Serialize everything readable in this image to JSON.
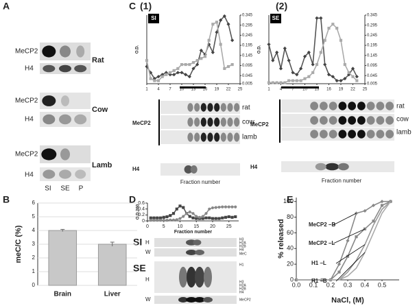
{
  "panel_labels": [
    "A",
    "B",
    "C",
    "D",
    "E"
  ],
  "subpanel_labels": [
    "(1)",
    "(2)"
  ],
  "blot_a": {
    "rows": [
      "MeCP2",
      "H4",
      "MeCP2",
      "H4",
      "MeCP2",
      "H4"
    ],
    "species": [
      "Rat",
      "Cow",
      "Lamb"
    ],
    "lanes": [
      "SI",
      "SE",
      "P"
    ]
  },
  "blot_c": [
    {
      "proteins": [
        "MeCP2",
        "H4"
      ],
      "species": [
        "rat",
        "cow",
        "lamb"
      ],
      "xlabel": "Fraction number"
    },
    {
      "proteins": [
        "MeCP2",
        "H4"
      ],
      "species": [
        "rat",
        "cow",
        "lamb"
      ],
      "xlabel": "Fraction number"
    }
  ],
  "blot_d": {
    "fractions": [
      "SI",
      "SE"
    ],
    "rows": [
      "H",
      "W",
      "H",
      "W"
    ],
    "markers_si": [
      "H3",
      "H2A",
      "H2B",
      "H4",
      "MeC"
    ],
    "markers_se": [
      "H1",
      "H3",
      "H2A",
      "H2B",
      "H4",
      "MeCP2"
    ]
  },
  "chart_data": [
    {
      "type": "bar",
      "ylabel": "meC/C (%)",
      "categories": [
        "Brain",
        "Liver"
      ],
      "values": [
        4.0,
        3.0
      ],
      "errors": [
        0.08,
        0.15
      ],
      "color": "#c8c8c8",
      "ylim": [
        0,
        6
      ],
      "yticks": [
        0,
        1,
        2,
        3,
        4,
        5,
        6
      ],
      "grid": true
    },
    {
      "type": "line",
      "title": "SI",
      "ylabel": "O.D.",
      "x": [
        1,
        2,
        3,
        4,
        5,
        6,
        7,
        8,
        9,
        10,
        11,
        12,
        13,
        14,
        15,
        16,
        17,
        18,
        19,
        20,
        21,
        22,
        23
      ],
      "xlim": [
        1,
        25
      ],
      "xticks": [
        1,
        4,
        7,
        10,
        13,
        16,
        19,
        22,
        25
      ],
      "y2lim": [
        0.005,
        0.345
      ],
      "y2ticks": [
        0.005,
        0.045,
        0.095,
        0.145,
        0.195,
        0.245,
        0.295,
        0.345
      ],
      "series": [
        {
          "color": "#555555",
          "axis": "y2",
          "marker": "diamond",
          "values": [
            0.09,
            0.06,
            0.03,
            0.04,
            0.05,
            0.06,
            0.05,
            0.05,
            0.06,
            0.06,
            0.05,
            0.04,
            0.08,
            0.1,
            0.17,
            0.15,
            0.2,
            0.16,
            0.26,
            0.32,
            0.34,
            0.3,
            0.22
          ]
        },
        {
          "color": "#aaaaaa",
          "axis": "y2",
          "marker": "square",
          "values": [
            0.12,
            0.03,
            0.02,
            0.02,
            0.04,
            0.05,
            0.06,
            0.07,
            0.08,
            0.1,
            0.1,
            0.1,
            0.11,
            0.12,
            0.13,
            0.14,
            0.22,
            0.3,
            0.31,
            0.2,
            0.08,
            0.09,
            0.1
          ]
        }
      ]
    },
    {
      "type": "line",
      "title": "SE",
      "ylabel": "O.D.",
      "x": [
        1,
        2,
        3,
        4,
        5,
        6,
        7,
        8,
        9,
        10,
        11,
        12,
        13,
        14,
        15,
        16,
        17,
        18,
        19,
        20,
        21,
        22,
        23
      ],
      "xlim": [
        1,
        25
      ],
      "xticks": [
        1,
        4,
        7,
        10,
        13,
        16,
        19,
        22,
        25
      ],
      "y2lim": [
        0.005,
        0.345
      ],
      "y2ticks": [
        0.005,
        0.045,
        0.095,
        0.145,
        0.195,
        0.245,
        0.295,
        0.345
      ],
      "series": [
        {
          "color": "#555555",
          "axis": "y2",
          "marker": "diamond",
          "values": [
            0.2,
            0.12,
            0.16,
            0.08,
            0.18,
            0.12,
            0.06,
            0.05,
            0.08,
            0.14,
            0.16,
            0.1,
            0.33,
            0.33,
            0.1,
            0.05,
            0.04,
            0.02,
            0.02,
            0.03,
            0.05,
            0.08,
            0.04
          ]
        },
        {
          "color": "#aaaaaa",
          "axis": "y2",
          "marker": "square",
          "values": [
            0.01,
            0.01,
            0.01,
            0.01,
            0.01,
            0.02,
            0.02,
            0.02,
            0.02,
            0.03,
            0.04,
            0.06,
            0.1,
            0.16,
            0.22,
            0.28,
            0.3,
            0.28,
            0.22,
            0.1,
            0.06,
            0.04,
            0.02
          ]
        }
      ]
    },
    {
      "type": "line",
      "ylabel": "O.D.260",
      "xlabel": "Fraction number",
      "x": [
        1,
        2,
        3,
        4,
        5,
        6,
        7,
        8,
        9,
        10,
        11,
        12,
        13,
        14,
        15,
        16,
        17,
        18,
        19,
        20,
        21,
        22,
        23,
        24,
        25,
        26,
        27
      ],
      "xlim": [
        0,
        28
      ],
      "xticks": [
        0,
        5,
        10,
        15,
        20,
        25
      ],
      "ylim": [
        0,
        0.6
      ],
      "yticks": [
        0,
        0.2,
        0.4,
        0.6
      ],
      "series": [
        {
          "color": "#555555",
          "marker": "square",
          "values": [
            0.1,
            0.1,
            0.1,
            0.1,
            0.12,
            0.14,
            0.18,
            0.25,
            0.4,
            0.5,
            0.45,
            0.25,
            0.15,
            0.1,
            0.08,
            0.08,
            0.08,
            0.1,
            0.1,
            0.08,
            0.08,
            0.08,
            0.1,
            0.12,
            0.14,
            0.12,
            0.14
          ]
        },
        {
          "color": "#888888",
          "marker": "circle",
          "values": [
            0.02,
            0.02,
            0.02,
            0.02,
            0.02,
            0.02,
            0.03,
            0.03,
            0.04,
            0.08,
            0.15,
            0.25,
            0.3,
            0.25,
            0.15,
            0.12,
            0.15,
            0.25,
            0.4,
            0.44,
            0.45,
            0.46,
            0.47,
            0.47,
            0.47,
            0.47,
            0.47
          ]
        }
      ]
    },
    {
      "type": "line",
      "ylabel": "% released",
      "xlabel": "NaCl, (M)",
      "x": [
        0,
        0.1,
        0.15,
        0.2,
        0.25,
        0.3,
        0.35,
        0.4,
        0.45,
        0.5,
        0.55
      ],
      "xlim": [
        0,
        0.6
      ],
      "xticks": [
        {
          "value": 0,
          "label": "0.0"
        },
        0.1,
        0.2,
        0.3,
        0.4,
        0.5
      ],
      "ylim": [
        0,
        105
      ],
      "yticks": [
        0,
        20,
        40,
        60,
        80,
        100
      ],
      "series": [
        {
          "name": "MeCP2 –B",
          "color": "#888888",
          "marker": "diamond",
          "values": [
            0,
            0,
            0,
            0,
            20,
            50,
            85,
            88,
            95,
            100,
            100
          ]
        },
        {
          "name": "MeCP2 –L",
          "color": "#888888",
          "marker": "square",
          "values": [
            0,
            0,
            0,
            0,
            10,
            30,
            55,
            65,
            75,
            95,
            100
          ]
        },
        {
          "name": "H1 –L",
          "color": "#999999",
          "marker": "none",
          "values": [
            0,
            0,
            0,
            0,
            0,
            10,
            25,
            45,
            70,
            90,
            100
          ]
        },
        {
          "name": "H1 –B",
          "color": "#aaaaaa",
          "marker": "none",
          "values": [
            0,
            0,
            0,
            0,
            0,
            5,
            15,
            35,
            60,
            85,
            100
          ]
        }
      ]
    }
  ]
}
